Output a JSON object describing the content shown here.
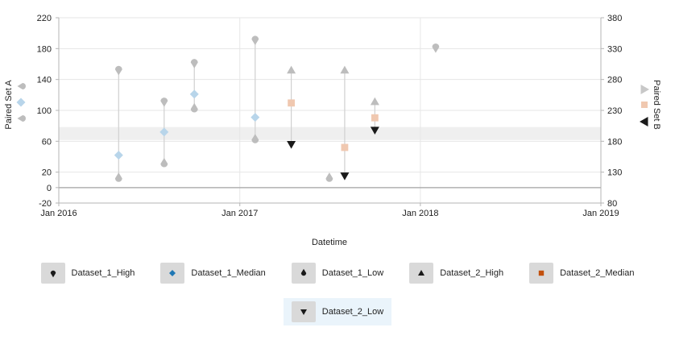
{
  "chart_data": {
    "type": "scatter",
    "xlabel": "Datetime",
    "x_ticks": [
      "Jan 2016",
      "Jan 2017",
      "Jan 2018",
      "Jan 2019"
    ],
    "x_range": [
      "2016-01-01",
      "2019-01-01"
    ],
    "y_left": {
      "label": "Paired Set A",
      "range": [
        -20,
        220
      ],
      "ticks": [
        -20,
        0,
        20,
        60,
        100,
        140,
        180,
        220
      ]
    },
    "y_right": {
      "label": "Paired Set B",
      "range": [
        80,
        380
      ],
      "ticks": [
        80,
        130,
        180,
        230,
        280,
        330,
        380
      ]
    },
    "band": {
      "axis": "right",
      "from": 182,
      "to": 203
    },
    "series": [
      {
        "name": "Dataset_1_High",
        "axis": "left",
        "marker": "droplet-down",
        "color": "#bdbdbd",
        "points": [
          [
            "2016-05-01",
            153
          ],
          [
            "2016-08-01",
            112
          ],
          [
            "2016-10-01",
            162
          ],
          [
            "2017-02-01",
            192
          ],
          [
            "2018-02-01",
            182
          ]
        ]
      },
      {
        "name": "Dataset_1_Median",
        "axis": "left",
        "marker": "diamond",
        "color": "#b8d5ea",
        "points": [
          [
            "2016-05-01",
            42
          ],
          [
            "2016-08-01",
            72
          ],
          [
            "2016-10-01",
            121
          ],
          [
            "2017-02-01",
            91
          ]
        ]
      },
      {
        "name": "Dataset_1_Low",
        "axis": "left",
        "marker": "droplet-up",
        "color": "#bdbdbd",
        "points": [
          [
            "2016-05-01",
            12
          ],
          [
            "2016-08-01",
            31
          ],
          [
            "2016-10-01",
            102
          ],
          [
            "2017-02-01",
            62
          ],
          [
            "2017-07-01",
            12
          ]
        ]
      },
      {
        "name": "Dataset_2_High",
        "axis": "right",
        "marker": "triangle-up",
        "color": "#bdbdbd",
        "points": [
          [
            "2017-04-15",
            295
          ],
          [
            "2017-08-01",
            295
          ],
          [
            "2017-10-01",
            244
          ]
        ]
      },
      {
        "name": "Dataset_2_Median",
        "axis": "right",
        "marker": "square",
        "color": "#f0c8b0",
        "points": [
          [
            "2017-04-15",
            242
          ],
          [
            "2017-08-01",
            170
          ],
          [
            "2017-10-01",
            218
          ]
        ]
      },
      {
        "name": "Dataset_2_Low",
        "axis": "right",
        "marker": "triangle-down",
        "color": "#1a1a1a",
        "points": [
          [
            "2017-04-15",
            175
          ],
          [
            "2017-08-01",
            124
          ],
          [
            "2017-10-01",
            198
          ]
        ]
      }
    ]
  },
  "legend": {
    "items": [
      {
        "label": "Dataset_1_High",
        "icon": "droplet-down-icon",
        "color": "#1a1a1a"
      },
      {
        "label": "Dataset_1_Median",
        "icon": "diamond-icon",
        "color": "#1f77b4"
      },
      {
        "label": "Dataset_1_Low",
        "icon": "droplet-up-icon",
        "color": "#1a1a1a"
      },
      {
        "label": "Dataset_2_High",
        "icon": "triangle-up-icon",
        "color": "#1a1a1a"
      },
      {
        "label": "Dataset_2_Median",
        "icon": "square-icon",
        "color": "#c2500e"
      },
      {
        "label": "Dataset_2_Low",
        "icon": "triangle-down-icon",
        "color": "#1a1a1a"
      }
    ],
    "active_index": 5
  }
}
